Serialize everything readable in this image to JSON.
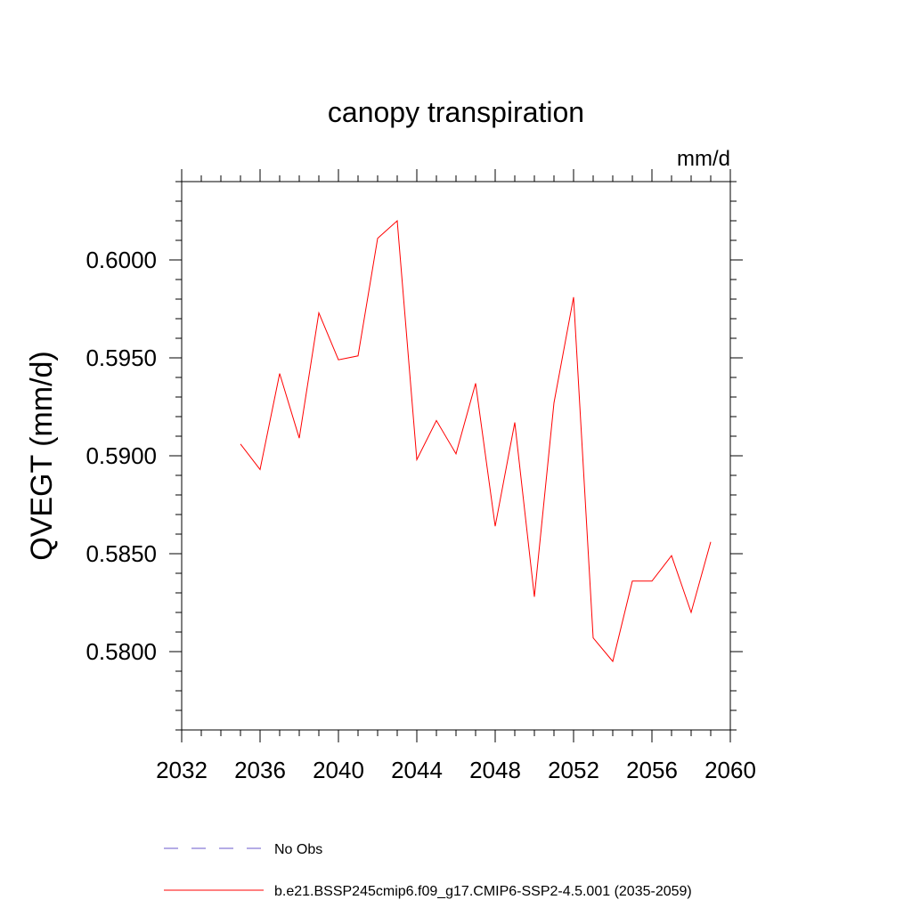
{
  "chart_data": {
    "type": "line",
    "title": "canopy transpiration",
    "units": "mm/d",
    "xlabel": "",
    "ylabel": "QVEGT  (mm/d)",
    "xlim": [
      2032,
      2060
    ],
    "ylim": [
      0.576,
      0.604
    ],
    "xticks": [
      2032,
      2036,
      2040,
      2044,
      2048,
      2052,
      2056,
      2060
    ],
    "yticks": [
      0.58,
      0.585,
      0.59,
      0.595,
      0.6
    ],
    "ytick_labels": [
      "0.5800",
      "0.5850",
      "0.5900",
      "0.5950",
      "0.6000"
    ],
    "grid": false,
    "legend_position": "bottom-left",
    "series": [
      {
        "name": "b.e21.BSSP245cmip6.f09_g17.CMIP6-SSP2-4.5.001 (2035-2059)",
        "color": "#ff0000",
        "style": "solid",
        "x": [
          2035,
          2036,
          2037,
          2038,
          2039,
          2040,
          2041,
          2042,
          2043,
          2044,
          2045,
          2046,
          2047,
          2048,
          2049,
          2050,
          2051,
          2052,
          2053,
          2054,
          2055,
          2056,
          2057,
          2058,
          2059
        ],
        "y": [
          0.5906,
          0.5893,
          0.5942,
          0.5909,
          0.5973,
          0.5949,
          0.5951,
          0.6011,
          0.602,
          0.5898,
          0.5918,
          0.5901,
          0.5937,
          0.5864,
          0.5917,
          0.5828,
          0.5927,
          0.5981,
          0.5807,
          0.5795,
          0.5836,
          0.5836,
          0.5849,
          0.582,
          0.5856
        ]
      }
    ],
    "legend": [
      {
        "label": "No Obs",
        "color": "#6a5acd",
        "style": "dashed"
      },
      {
        "label": "b.e21.BSSP245cmip6.f09_g17.CMIP6-SSP2-4.5.001 (2035-2059)",
        "color": "#ff0000",
        "style": "solid"
      }
    ]
  }
}
